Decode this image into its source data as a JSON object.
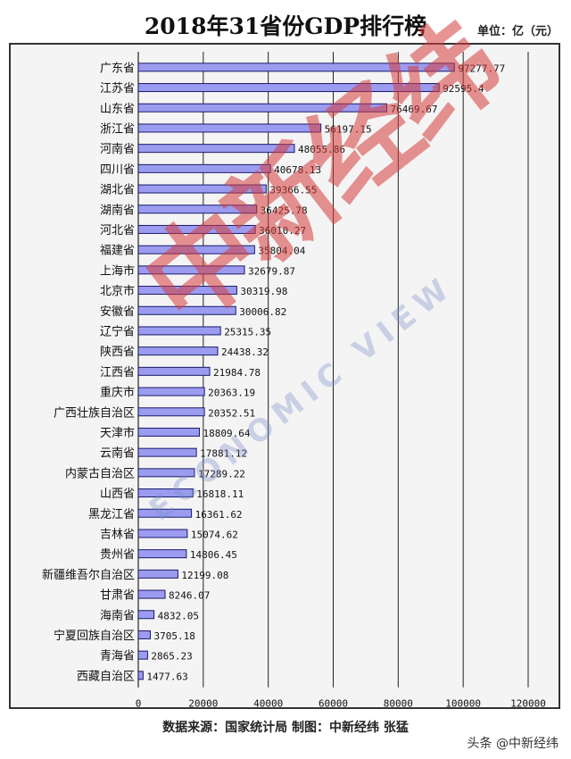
{
  "header": {
    "title": "2018年31省份GDP排行榜",
    "unit": "单位：亿（元）"
  },
  "footer": {
    "text": "数据来源：国家统计局  制图：中新经纬  张猛"
  },
  "watermark": {
    "main": "中新经纬",
    "sub": "ECONOMIC VIEW"
  },
  "source_badge": "头条 @中新经纬",
  "chart_data": {
    "type": "bar",
    "orientation": "horizontal",
    "categories": [
      "广东省",
      "江苏省",
      "山东省",
      "浙江省",
      "河南省",
      "四川省",
      "湖北省",
      "湖南省",
      "河北省",
      "福建省",
      "上海市",
      "北京市",
      "安徽省",
      "辽宁省",
      "陕西省",
      "江西省",
      "重庆市",
      "广西壮族自治区",
      "天津市",
      "云南省",
      "内蒙古自治区",
      "山西省",
      "黑龙江省",
      "吉林省",
      "贵州省",
      "新疆维吾尔自治区",
      "甘肃省",
      "海南省",
      "宁夏回族自治区",
      "青海省",
      "西藏自治区"
    ],
    "values": [
      97277.77,
      92595.4,
      76469.67,
      56197.15,
      48055.86,
      40678.13,
      39366.55,
      36425.78,
      36010.27,
      35804.04,
      32679.87,
      30319.98,
      30006.82,
      25315.35,
      24438.32,
      21984.78,
      20363.19,
      20352.51,
      18809.64,
      17881.12,
      17289.22,
      16818.11,
      16361.62,
      15074.62,
      14806.45,
      12199.08,
      8246.07,
      4832.05,
      3705.18,
      2865.23,
      1477.63
    ],
    "value_labels": [
      "97277.77",
      "92595.4",
      "76469.67",
      "56197.15",
      "48055.86",
      "40678.13",
      "39366.55",
      "36425.78",
      "36010.27",
      "35804.04",
      "32679.87",
      "30319.98",
      "30006.82",
      "25315.35",
      "24438.32",
      "21984.78",
      "20363.19",
      "20352.51",
      "18809.64",
      "17881.12",
      "17289.22",
      "16818.11",
      "16361.62",
      "15074.62",
      "14806.45",
      "12199.08",
      "8246.07",
      "4832.05",
      "3705.18",
      "2865.23",
      "1477.63"
    ],
    "xlim": [
      0,
      120000
    ],
    "xticks": [
      0,
      20000,
      40000,
      60000,
      80000,
      100000,
      120000
    ],
    "grid": true,
    "bar_color": "#9b9bf0",
    "bar_edge_color": "#1a1a6a"
  }
}
